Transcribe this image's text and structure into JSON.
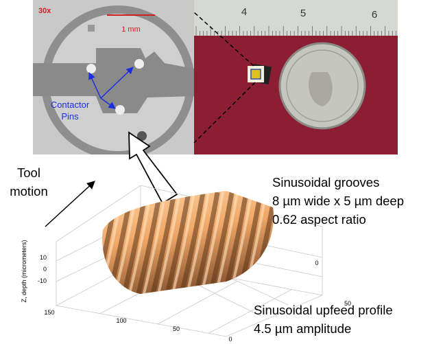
{
  "microscope_image": {
    "magnification": "30x",
    "scale_label": "1 mm",
    "pins_label": [
      "Contactor",
      "Pins"
    ]
  },
  "photo": {
    "ruler_labels": [
      "4",
      "5",
      "6"
    ]
  },
  "tool_motion": [
    "Tool",
    "motion"
  ],
  "grooves_note": [
    "Sinusoidal grooves",
    "8 µm wide x 5 µm deep",
    "0.62 aspect ratio"
  ],
  "surface_plot": {
    "z_label": "Z, depth (micrometers)",
    "z_ticks": [
      "10",
      "0",
      "-10"
    ],
    "x_ticks": [
      "150",
      "100",
      "50",
      "0"
    ],
    "y_ticks": [
      "0",
      "50"
    ]
  },
  "profile_note": [
    "Sinusoidal upfeed profile",
    "4.5 µm amplitude"
  ]
}
